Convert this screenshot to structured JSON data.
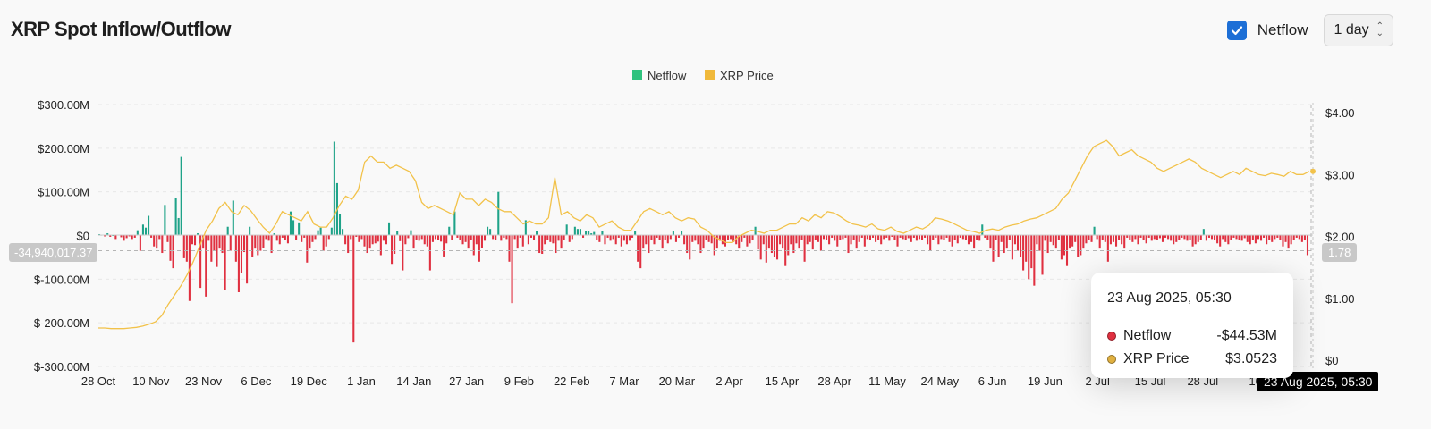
{
  "page": {
    "title": "XRP Spot Inflow/Outflow"
  },
  "controls": {
    "netflow_label": "Netflow",
    "netflow_checked": true,
    "interval": "1 day"
  },
  "colors": {
    "positive": "#1fa389",
    "negative": "#e03040",
    "price": "#f2c24a",
    "netflow_legend": "#2fc27e",
    "price_legend": "#f0b93b"
  },
  "crosshair": {
    "left_label": "-34,940,017.37",
    "right_label": "1.78",
    "x_label": "23 Aug 2025, 05:30"
  },
  "tooltip": {
    "date": "23 Aug 2025, 05:30",
    "rows": [
      {
        "name": "Netflow",
        "value": "-$44.53M",
        "color": "#e03040"
      },
      {
        "name": "XRP Price",
        "value": "$3.0523",
        "color": "#e0b040"
      }
    ]
  },
  "chart_data": {
    "type": "bar+line",
    "title": "XRP Spot Inflow/Outflow",
    "legend": [
      "Netflow",
      "XRP Price"
    ],
    "left_axis": {
      "range": [
        -300,
        300
      ],
      "ticks": [
        300,
        200,
        100,
        0,
        -100,
        -200,
        -300
      ],
      "tick_labels": [
        "$300.00M",
        "$200.00M",
        "$100.00M",
        "$0",
        "$-100.00M",
        "$-200.00M",
        "$-300.00M"
      ]
    },
    "right_axis": {
      "range": [
        0,
        4
      ],
      "ticks": [
        4,
        3,
        2,
        1,
        0
      ],
      "tick_labels": [
        "$4.00",
        "$3.00",
        "$2.00",
        "$1.00",
        "$0"
      ]
    },
    "x_labels": [
      "28 Oct",
      "10 Nov",
      "23 Nov",
      "6 Dec",
      "19 Dec",
      "1 Jan",
      "14 Jan",
      "27 Jan",
      "9 Feb",
      "22 Feb",
      "7 Mar",
      "20 Mar",
      "2 Apr",
      "15 Apr",
      "28 Apr",
      "11 May",
      "24 May",
      "6 Jun",
      "19 Jun",
      "2 Jul",
      "15 Jul",
      "28 Jul",
      "10"
    ],
    "series": [
      {
        "name": "Netflow",
        "unit": "$M",
        "values": [
          3,
          2,
          -2,
          5,
          -3,
          1,
          -8,
          2,
          -4,
          -12,
          -6,
          -2,
          -8,
          -5,
          12,
          -35,
          25,
          18,
          45,
          -5,
          -25,
          -30,
          -8,
          -40,
          70,
          -15,
          -58,
          -75,
          85,
          40,
          180,
          -52,
          -60,
          -150,
          -20,
          -22,
          5,
          -120,
          -30,
          -140,
          -12,
          -60,
          -35,
          -72,
          -30,
          -40,
          -125,
          20,
          -35,
          80,
          -60,
          -130,
          -85,
          -38,
          -110,
          20,
          -50,
          -30,
          -45,
          -35,
          -28,
          -8,
          -12,
          -40,
          5,
          -12,
          -20,
          -5,
          -10,
          -18,
          55,
          35,
          -10,
          30,
          -15,
          -5,
          -62,
          -30,
          -15,
          -8,
          12,
          18,
          -35,
          -25,
          -8,
          18,
          215,
          120,
          50,
          15,
          -20,
          -40,
          -8,
          -245,
          -3,
          -15,
          -8,
          -25,
          -40,
          -30,
          -20,
          -18,
          -14,
          -45,
          -12,
          -20,
          30,
          -65,
          -42,
          10,
          -13,
          -80,
          -20,
          -6,
          12,
          -30,
          -10,
          -12,
          -8,
          -20,
          -25,
          -80,
          -15,
          -8,
          -10,
          -14,
          -48,
          -18,
          20,
          -10,
          55,
          -5,
          -10,
          -20,
          -15,
          -30,
          -10,
          -45,
          -20,
          -60,
          -28,
          -12,
          20,
          15,
          -8,
          -10,
          100,
          -12,
          -5,
          -8,
          -60,
          -155,
          -8,
          -30,
          -5,
          -25,
          35,
          -20,
          -5,
          -10,
          10,
          -40,
          -42,
          -20,
          -10,
          -15,
          -18,
          -40,
          -12,
          -30,
          -10,
          25,
          -15,
          -8,
          20,
          15,
          15,
          -5,
          10,
          10,
          5,
          8,
          -10,
          -15,
          10,
          -20,
          -5,
          -12,
          -8,
          -20,
          -5,
          -25,
          -12,
          -20,
          -12,
          -5,
          10,
          -60,
          -75,
          -30,
          -20,
          -40,
          -10,
          -20,
          -5,
          -10,
          -30,
          -10,
          -18,
          -8,
          10,
          -15,
          -5,
          10,
          -20,
          -40,
          -55,
          -15,
          -12,
          -20,
          -40,
          -30,
          -10,
          -15,
          -18,
          -45,
          -30,
          -12,
          -20,
          -25,
          -10,
          -8,
          -15,
          -20,
          -30,
          -15,
          -5,
          -25,
          -18,
          -10,
          20,
          -32,
          -55,
          -20,
          -62,
          -30,
          -40,
          -50,
          -55,
          -20,
          -30,
          -70,
          -45,
          -20,
          -40,
          -18,
          -30,
          -10,
          -60,
          -20,
          -15,
          -32,
          -10,
          -15,
          -35,
          -8,
          -10,
          -20,
          -5,
          -12,
          -25,
          -10,
          -8,
          -5,
          -40,
          -20,
          -10,
          -30,
          -15,
          -5,
          -25,
          -8,
          -10,
          -5,
          -15,
          -10,
          -20,
          -8,
          -5,
          -12,
          -3,
          -10,
          -25,
          -5,
          -8,
          -10,
          -6,
          -15,
          -5,
          -12,
          -8,
          -10,
          -5,
          -20,
          -35,
          -10,
          -5,
          -20,
          -8,
          -10,
          -5,
          -15,
          -25,
          -10,
          -18,
          -5,
          -8,
          -10,
          -20,
          -15,
          -30,
          -10,
          -12,
          25,
          -5,
          -10,
          -30,
          -60,
          -10,
          -50,
          -15,
          -40,
          -30,
          -10,
          -55,
          -20,
          -35,
          -50,
          -80,
          -60,
          -100,
          -75,
          -115,
          -20,
          -35,
          -90,
          -12,
          -40,
          -15,
          -22,
          -30,
          -10,
          -55,
          -45,
          -70,
          -30,
          -25,
          -15,
          -50,
          -45,
          -30,
          -18,
          -10,
          -15,
          20,
          -8,
          -30,
          -10,
          -15,
          -60,
          -20,
          -15,
          -25,
          -10,
          -20,
          -30,
          -5,
          -10,
          -15,
          -8,
          -20,
          -5,
          -10,
          -18,
          -5,
          -12,
          -8,
          -10,
          -6,
          -15,
          -5,
          -8,
          -12,
          -20,
          -15,
          -10,
          -5,
          -8,
          -12,
          -10,
          -25,
          -20,
          -15,
          -10,
          15,
          -12,
          -5,
          -8,
          -10,
          -18,
          -25,
          -8,
          -15,
          -20,
          -10,
          -5,
          -8,
          -10,
          -12,
          -6,
          -15,
          -20,
          -10,
          -18,
          -8,
          -12,
          -5,
          -20,
          -10,
          -15,
          -8,
          -5,
          -10,
          -25,
          -15,
          -30,
          -20,
          -10,
          -5,
          -8,
          -15,
          -10,
          -45
        ],
        "color": "green/red"
      },
      {
        "name": "XRP Price",
        "unit": "$",
        "values": [
          0.52,
          0.52,
          0.51,
          0.51,
          0.51,
          0.52,
          0.53,
          0.55,
          0.58,
          0.62,
          0.72,
          0.9,
          1.05,
          1.2,
          1.38,
          1.6,
          1.85,
          2.1,
          2.25,
          2.45,
          2.55,
          2.4,
          2.35,
          2.5,
          2.42,
          2.28,
          2.15,
          2.05,
          2.2,
          2.4,
          2.35,
          2.3,
          2.25,
          2.4,
          2.2,
          2.15,
          2.15,
          2.3,
          2.5,
          2.65,
          2.6,
          2.75,
          3.2,
          3.3,
          3.2,
          3.2,
          3.1,
          3.15,
          3.1,
          3.05,
          2.9,
          2.55,
          2.45,
          2.5,
          2.45,
          2.4,
          2.35,
          2.7,
          2.6,
          2.6,
          2.5,
          2.6,
          2.55,
          2.45,
          2.4,
          2.4,
          2.3,
          2.2,
          2.25,
          2.2,
          2.2,
          2.3,
          2.95,
          2.35,
          2.4,
          2.3,
          2.25,
          2.35,
          2.3,
          2.15,
          2.2,
          2.25,
          2.15,
          2.1,
          2.1,
          2.25,
          2.4,
          2.45,
          2.4,
          2.35,
          2.4,
          2.3,
          2.25,
          2.3,
          2.28,
          2.15,
          2.1,
          2.0,
          1.95,
          1.9,
          1.9,
          2.0,
          2.05,
          2.1,
          2.08,
          2.05,
          2.1,
          2.1,
          2.15,
          2.2,
          2.2,
          2.3,
          2.25,
          2.35,
          2.3,
          2.4,
          2.38,
          2.32,
          2.25,
          2.2,
          2.18,
          2.15,
          2.2,
          2.12,
          2.1,
          2.15,
          2.08,
          2.05,
          2.1,
          2.15,
          2.12,
          2.18,
          2.3,
          2.28,
          2.25,
          2.2,
          2.15,
          2.1,
          2.08,
          2.05,
          2.1,
          2.12,
          2.1,
          2.15,
          2.18,
          2.2,
          2.25,
          2.28,
          2.3,
          2.35,
          2.4,
          2.45,
          2.6,
          2.7,
          2.9,
          3.1,
          3.3,
          3.45,
          3.5,
          3.55,
          3.45,
          3.3,
          3.35,
          3.4,
          3.3,
          3.25,
          3.2,
          3.1,
          3.05,
          3.1,
          3.15,
          3.2,
          3.25,
          3.2,
          3.1,
          3.05,
          3.0,
          2.95,
          3.0,
          3.05,
          3.0,
          3.1,
          3.05,
          3.0,
          2.98,
          3.02,
          3.0,
          2.97,
          3.05,
          3.0,
          3.0,
          3.05
        ]
      }
    ]
  }
}
